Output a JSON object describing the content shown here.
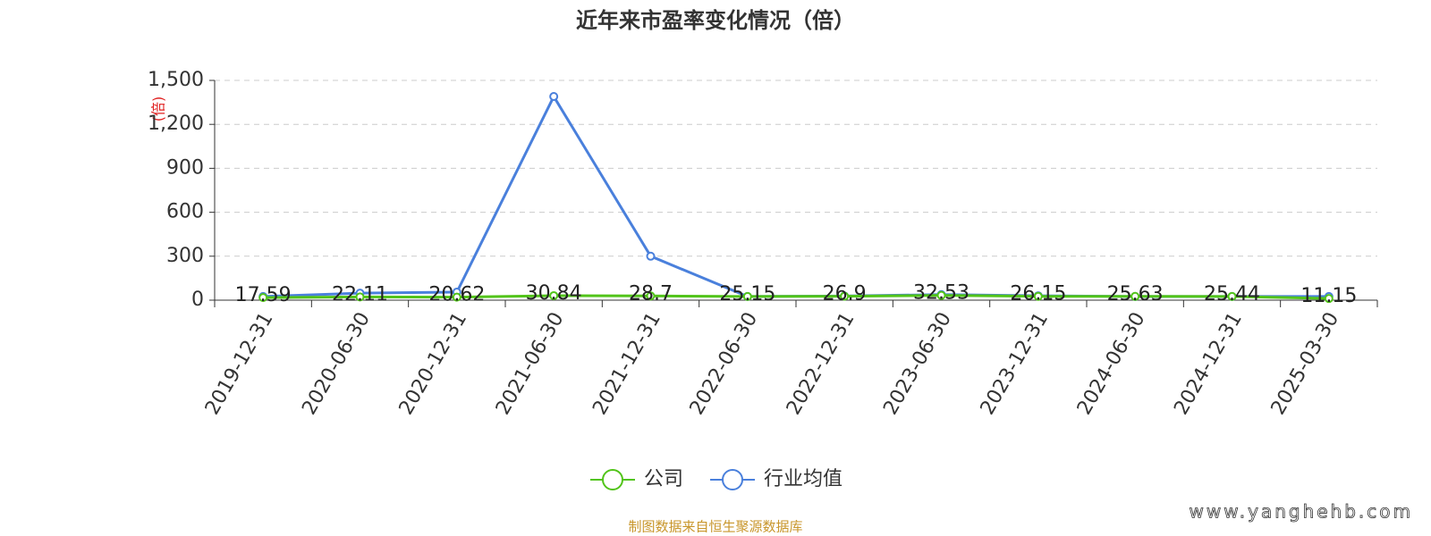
{
  "chart_data": {
    "type": "line",
    "title": "近年来市盈率变化情况（倍）",
    "y_label": "(倍)",
    "categories": [
      "2019-12-31",
      "2020-06-30",
      "2020-12-31",
      "2021-06-30",
      "2021-12-31",
      "2022-06-30",
      "2022-12-31",
      "2023-06-30",
      "2023-12-31",
      "2024-06-30",
      "2024-12-31",
      "2025-03-30"
    ],
    "series": [
      {
        "name": "公司",
        "color": "#52c41a",
        "values": [
          17.59,
          22.11,
          20.62,
          30.84,
          28.7,
          25.15,
          26.9,
          32.53,
          26.15,
          25.63,
          25.44,
          11.15
        ]
      },
      {
        "name": "行业均值",
        "color": "#4a80dc",
        "values": [
          25,
          48,
          55,
          1390,
          300,
          25,
          28,
          38,
          30,
          25,
          25,
          25
        ]
      }
    ],
    "ylim": [
      0,
      1500
    ],
    "yticks": [
      0,
      300,
      600,
      900,
      {
        "value": 1200,
        "label": "1,200"
      },
      {
        "value": 1500,
        "label": "1,500"
      }
    ],
    "grid": true,
    "source": "制图数据来自恒生聚源数据库",
    "watermark": "www.yanghehb.com"
  }
}
